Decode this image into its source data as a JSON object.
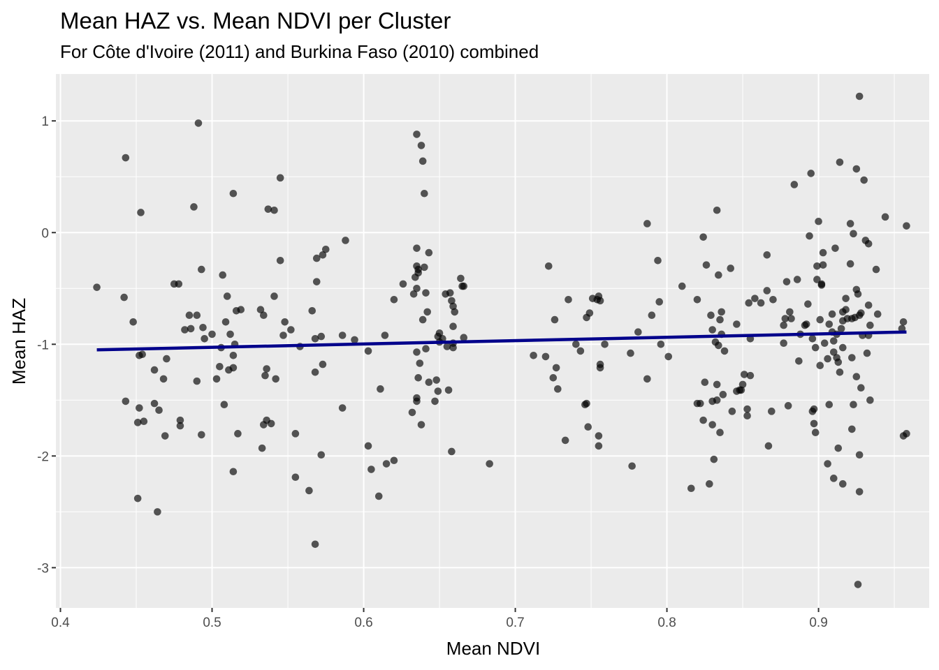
{
  "chart_data": {
    "type": "scatter",
    "title": "Mean HAZ vs. Mean NDVI per Cluster",
    "subtitle": "For Côte d'Ivoire (2011) and Burkina Faso (2010) combined",
    "xlabel": "Mean NDVI",
    "ylabel": "Mean HAZ",
    "xlim": [
      0.397,
      0.973
    ],
    "ylim": [
      -3.36,
      1.42
    ],
    "xticks": [
      0.4,
      0.5,
      0.6,
      0.7,
      0.8,
      0.9
    ],
    "xtick_labels": [
      "0.4",
      "0.5",
      "0.6",
      "0.7",
      "0.8",
      "0.9"
    ],
    "yticks": [
      1,
      0,
      -1,
      -2,
      -3
    ],
    "ytick_labels": [
      "1",
      "0",
      "-1",
      "-2",
      "-3"
    ],
    "grid": true,
    "background": "#ebebeb",
    "point_color": "#000000",
    "point_alpha": 0.65,
    "fit_line_color": "#00008b",
    "fit_line": {
      "x": [
        0.424,
        0.958
      ],
      "y": [
        -1.05,
        -0.89
      ]
    },
    "points": [
      [
        0.424,
        -0.49
      ],
      [
        0.443,
        0.67
      ],
      [
        0.442,
        -0.58
      ],
      [
        0.443,
        -1.51
      ],
      [
        0.448,
        -0.8
      ],
      [
        0.451,
        -2.38
      ],
      [
        0.452,
        -1.1
      ],
      [
        0.453,
        0.18
      ],
      [
        0.452,
        -1.57
      ],
      [
        0.451,
        -1.7
      ],
      [
        0.455,
        -1.69
      ],
      [
        0.454,
        -1.09
      ],
      [
        0.462,
        -1.23
      ],
      [
        0.462,
        -1.53
      ],
      [
        0.465,
        -1.59
      ],
      [
        0.464,
        -2.5
      ],
      [
        0.468,
        -1.31
      ],
      [
        0.469,
        -1.82
      ],
      [
        0.47,
        -1.13
      ],
      [
        0.475,
        -0.46
      ],
      [
        0.478,
        -0.46
      ],
      [
        0.479,
        -1.68
      ],
      [
        0.479,
        -1.73
      ],
      [
        0.482,
        -0.87
      ],
      [
        0.485,
        -0.74
      ],
      [
        0.486,
        -0.86
      ],
      [
        0.488,
        0.23
      ],
      [
        0.49,
        -0.74
      ],
      [
        0.49,
        -1.33
      ],
      [
        0.491,
        0.98
      ],
      [
        0.493,
        -0.33
      ],
      [
        0.494,
        -0.85
      ],
      [
        0.493,
        -1.81
      ],
      [
        0.495,
        -0.95
      ],
      [
        0.5,
        -0.91
      ],
      [
        0.503,
        -1.31
      ],
      [
        0.505,
        -1.2
      ],
      [
        0.506,
        -1.03
      ],
      [
        0.507,
        -0.38
      ],
      [
        0.508,
        -1.54
      ],
      [
        0.509,
        -0.8
      ],
      [
        0.51,
        -0.57
      ],
      [
        0.511,
        -1.23
      ],
      [
        0.512,
        -0.91
      ],
      [
        0.514,
        -1.1
      ],
      [
        0.514,
        -1.21
      ],
      [
        0.515,
        -1.0
      ],
      [
        0.514,
        0.35
      ],
      [
        0.514,
        -2.14
      ],
      [
        0.516,
        -0.7
      ],
      [
        0.517,
        -1.8
      ],
      [
        0.519,
        -0.69
      ],
      [
        0.532,
        -0.69
      ],
      [
        0.533,
        -1.93
      ],
      [
        0.534,
        -0.74
      ],
      [
        0.534,
        -1.72
      ],
      [
        0.535,
        -1.28
      ],
      [
        0.536,
        -1.22
      ],
      [
        0.536,
        -1.68
      ],
      [
        0.537,
        0.21
      ],
      [
        0.539,
        -1.71
      ],
      [
        0.541,
        -0.57
      ],
      [
        0.541,
        0.2
      ],
      [
        0.542,
        -1.31
      ],
      [
        0.545,
        0.49
      ],
      [
        0.545,
        -0.25
      ],
      [
        0.547,
        -0.92
      ],
      [
        0.548,
        -0.8
      ],
      [
        0.552,
        -0.87
      ],
      [
        0.555,
        -2.19
      ],
      [
        0.555,
        -1.8
      ],
      [
        0.558,
        -1.02
      ],
      [
        0.564,
        -2.31
      ],
      [
        0.566,
        -0.7
      ],
      [
        0.568,
        -1.25
      ],
      [
        0.568,
        -0.95
      ],
      [
        0.569,
        -0.23
      ],
      [
        0.569,
        -0.44
      ],
      [
        0.568,
        -2.79
      ],
      [
        0.572,
        -1.99
      ],
      [
        0.572,
        -0.93
      ],
      [
        0.573,
        -1.18
      ],
      [
        0.573,
        -0.2
      ],
      [
        0.575,
        -0.15
      ],
      [
        0.586,
        -0.92
      ],
      [
        0.586,
        -1.57
      ],
      [
        0.588,
        -0.07
      ],
      [
        0.594,
        -0.96
      ],
      [
        0.603,
        -1.06
      ],
      [
        0.603,
        -1.91
      ],
      [
        0.605,
        -2.12
      ],
      [
        0.61,
        -2.36
      ],
      [
        0.611,
        -1.4
      ],
      [
        0.614,
        -0.92
      ],
      [
        0.615,
        -2.07
      ],
      [
        0.62,
        -0.6
      ],
      [
        0.62,
        -2.04
      ],
      [
        0.626,
        -0.46
      ],
      [
        0.632,
        -1.61
      ],
      [
        0.633,
        -0.55
      ],
      [
        0.634,
        -0.4
      ],
      [
        0.635,
        0.88
      ],
      [
        0.635,
        -0.14
      ],
      [
        0.635,
        -0.3
      ],
      [
        0.636,
        -0.33
      ],
      [
        0.636,
        -0.36
      ],
      [
        0.635,
        -0.5
      ],
      [
        0.635,
        -1.07
      ],
      [
        0.635,
        -1.48
      ],
      [
        0.635,
        -1.51
      ],
      [
        0.636,
        -1.3
      ],
      [
        0.637,
        -1.17
      ],
      [
        0.638,
        0.78
      ],
      [
        0.638,
        -1.72
      ],
      [
        0.639,
        0.64
      ],
      [
        0.64,
        0.35
      ],
      [
        0.639,
        -0.78
      ],
      [
        0.64,
        -0.31
      ],
      [
        0.641,
        -0.54
      ],
      [
        0.641,
        -1.04
      ],
      [
        0.642,
        -0.71
      ],
      [
        0.643,
        -0.18
      ],
      [
        0.643,
        -1.34
      ],
      [
        0.647,
        -1.51
      ],
      [
        0.648,
        -1.32
      ],
      [
        0.649,
        -0.93
      ],
      [
        0.649,
        -1.42
      ],
      [
        0.65,
        -0.9
      ],
      [
        0.65,
        -0.98
      ],
      [
        0.652,
        -0.95
      ],
      [
        0.654,
        -0.55
      ],
      [
        0.655,
        -1.02
      ],
      [
        0.656,
        -1.41
      ],
      [
        0.657,
        -0.54
      ],
      [
        0.658,
        -0.61
      ],
      [
        0.658,
        -1.96
      ],
      [
        0.659,
        -0.99
      ],
      [
        0.659,
        -1.03
      ],
      [
        0.659,
        -0.66
      ],
      [
        0.659,
        -0.84
      ],
      [
        0.66,
        -0.71
      ],
      [
        0.664,
        -0.41
      ],
      [
        0.665,
        -0.48
      ],
      [
        0.666,
        -0.48
      ],
      [
        0.666,
        -0.94
      ],
      [
        0.683,
        -2.07
      ],
      [
        0.712,
        -1.1
      ],
      [
        0.72,
        -1.11
      ],
      [
        0.722,
        -0.3
      ],
      [
        0.725,
        -1.3
      ],
      [
        0.726,
        -0.78
      ],
      [
        0.727,
        -1.21
      ],
      [
        0.728,
        -1.4
      ],
      [
        0.733,
        -1.86
      ],
      [
        0.735,
        -0.6
      ],
      [
        0.74,
        -1.0
      ],
      [
        0.743,
        -1.06
      ],
      [
        0.746,
        -1.54
      ],
      [
        0.747,
        -0.76
      ],
      [
        0.747,
        -1.53
      ],
      [
        0.748,
        -1.74
      ],
      [
        0.749,
        -0.72
      ],
      [
        0.751,
        -0.59
      ],
      [
        0.754,
        -0.6
      ],
      [
        0.755,
        -0.57
      ],
      [
        0.755,
        -1.91
      ],
      [
        0.755,
        -1.82
      ],
      [
        0.756,
        -1.18
      ],
      [
        0.756,
        -0.61
      ],
      [
        0.756,
        -1.21
      ],
      [
        0.759,
        -1.0
      ],
      [
        0.776,
        -1.08
      ],
      [
        0.777,
        -2.09
      ],
      [
        0.781,
        -0.89
      ],
      [
        0.787,
        -1.31
      ],
      [
        0.787,
        0.08
      ],
      [
        0.79,
        -0.74
      ],
      [
        0.794,
        -0.25
      ],
      [
        0.795,
        -0.62
      ],
      [
        0.796,
        -1.0
      ],
      [
        0.801,
        -1.11
      ],
      [
        0.81,
        -0.48
      ],
      [
        0.816,
        -2.29
      ],
      [
        0.82,
        -0.6
      ],
      [
        0.82,
        -1.53
      ],
      [
        0.822,
        -1.53
      ],
      [
        0.824,
        -0.04
      ],
      [
        0.824,
        -1.68
      ],
      [
        0.825,
        -1.34
      ],
      [
        0.826,
        -0.29
      ],
      [
        0.828,
        -2.25
      ],
      [
        0.829,
        -0.74
      ],
      [
        0.83,
        -1.72
      ],
      [
        0.83,
        -0.87
      ],
      [
        0.83,
        -1.51
      ],
      [
        0.831,
        -2.03
      ],
      [
        0.832,
        -0.98
      ],
      [
        0.833,
        -1.5
      ],
      [
        0.833,
        0.2
      ],
      [
        0.833,
        -1.36
      ],
      [
        0.834,
        -1.01
      ],
      [
        0.834,
        -0.38
      ],
      [
        0.835,
        -0.78
      ],
      [
        0.835,
        -1.79
      ],
      [
        0.836,
        -0.71
      ],
      [
        0.836,
        -0.91
      ],
      [
        0.837,
        -1.45
      ],
      [
        0.838,
        -1.06
      ],
      [
        0.842,
        -0.32
      ],
      [
        0.843,
        -1.6
      ],
      [
        0.846,
        -0.82
      ],
      [
        0.846,
        -1.42
      ],
      [
        0.848,
        -1.41
      ],
      [
        0.849,
        -1.41
      ],
      [
        0.85,
        -1.36
      ],
      [
        0.851,
        -1.27
      ],
      [
        0.853,
        -1.58
      ],
      [
        0.853,
        -1.64
      ],
      [
        0.854,
        -0.63
      ],
      [
        0.855,
        -0.95
      ],
      [
        0.855,
        -1.28
      ],
      [
        0.858,
        -0.59
      ],
      [
        0.862,
        -0.63
      ],
      [
        0.866,
        -0.2
      ],
      [
        0.866,
        -0.52
      ],
      [
        0.867,
        -1.91
      ],
      [
        0.869,
        -1.6
      ],
      [
        0.87,
        -0.6
      ],
      [
        0.877,
        -0.99
      ],
      [
        0.877,
        -0.83
      ],
      [
        0.878,
        -0.77
      ],
      [
        0.879,
        -0.44
      ],
      [
        0.88,
        -1.55
      ],
      [
        0.881,
        -0.71
      ],
      [
        0.882,
        -0.77
      ],
      [
        0.884,
        0.43
      ],
      [
        0.886,
        -0.42
      ],
      [
        0.887,
        -1.15
      ],
      [
        0.888,
        -0.91
      ],
      [
        0.891,
        -0.83
      ],
      [
        0.892,
        -0.82
      ],
      [
        0.893,
        -0.64
      ],
      [
        0.894,
        -0.03
      ],
      [
        0.895,
        0.53
      ],
      [
        0.896,
        -0.95
      ],
      [
        0.896,
        -1.6
      ],
      [
        0.897,
        -1.71
      ],
      [
        0.897,
        -1.58
      ],
      [
        0.898,
        -1.79
      ],
      [
        0.898,
        -1.03
      ],
      [
        0.899,
        -0.3
      ],
      [
        0.899,
        -0.42
      ],
      [
        0.9,
        0.1
      ],
      [
        0.901,
        -1.19
      ],
      [
        0.901,
        -0.78
      ],
      [
        0.902,
        -0.46
      ],
      [
        0.902,
        -0.47
      ],
      [
        0.903,
        -0.18
      ],
      [
        0.903,
        -0.29
      ],
      [
        0.904,
        -0.99
      ],
      [
        0.906,
        -1.13
      ],
      [
        0.906,
        -2.07
      ],
      [
        0.907,
        -0.82
      ],
      [
        0.907,
        -1.54
      ],
      [
        0.909,
        -0.89
      ],
      [
        0.909,
        -0.73
      ],
      [
        0.91,
        -0.97
      ],
      [
        0.91,
        -1.07
      ],
      [
        0.91,
        -2.2
      ],
      [
        0.911,
        -0.14
      ],
      [
        0.912,
        -0.91
      ],
      [
        0.912,
        -1.12
      ],
      [
        0.913,
        -1.16
      ],
      [
        0.913,
        -1.93
      ],
      [
        0.914,
        0.63
      ],
      [
        0.914,
        -1.25
      ],
      [
        0.915,
        -0.86
      ],
      [
        0.916,
        -0.71
      ],
      [
        0.916,
        -0.79
      ],
      [
        0.916,
        -1.03
      ],
      [
        0.916,
        -2.25
      ],
      [
        0.918,
        -0.69
      ],
      [
        0.918,
        -0.59
      ],
      [
        0.919,
        -0.77
      ],
      [
        0.921,
        0.08
      ],
      [
        0.921,
        -0.28
      ],
      [
        0.922,
        -0.77
      ],
      [
        0.922,
        -1.12
      ],
      [
        0.922,
        -1.76
      ],
      [
        0.923,
        -0.01
      ],
      [
        0.923,
        -1.54
      ],
      [
        0.924,
        -0.76
      ],
      [
        0.925,
        -1.29
      ],
      [
        0.925,
        -0.51
      ],
      [
        0.925,
        0.57
      ],
      [
        0.926,
        -0.55
      ],
      [
        0.926,
        -3.15
      ],
      [
        0.927,
        -0.74
      ],
      [
        0.927,
        -2.32
      ],
      [
        0.927,
        -1.99
      ],
      [
        0.927,
        1.22
      ],
      [
        0.928,
        -1.39
      ],
      [
        0.928,
        -0.72
      ],
      [
        0.929,
        -0.92
      ],
      [
        0.93,
        0.47
      ],
      [
        0.931,
        -0.07
      ],
      [
        0.932,
        -1.08
      ],
      [
        0.933,
        -0.65
      ],
      [
        0.933,
        -0.1
      ],
      [
        0.933,
        -0.92
      ],
      [
        0.934,
        -1.5
      ],
      [
        0.934,
        -0.83
      ],
      [
        0.938,
        -0.33
      ],
      [
        0.939,
        -0.73
      ],
      [
        0.944,
        0.14
      ],
      [
        0.955,
        -0.86
      ],
      [
        0.956,
        -0.8
      ],
      [
        0.956,
        -1.82
      ],
      [
        0.958,
        0.06
      ],
      [
        0.958,
        -1.8
      ]
    ]
  }
}
